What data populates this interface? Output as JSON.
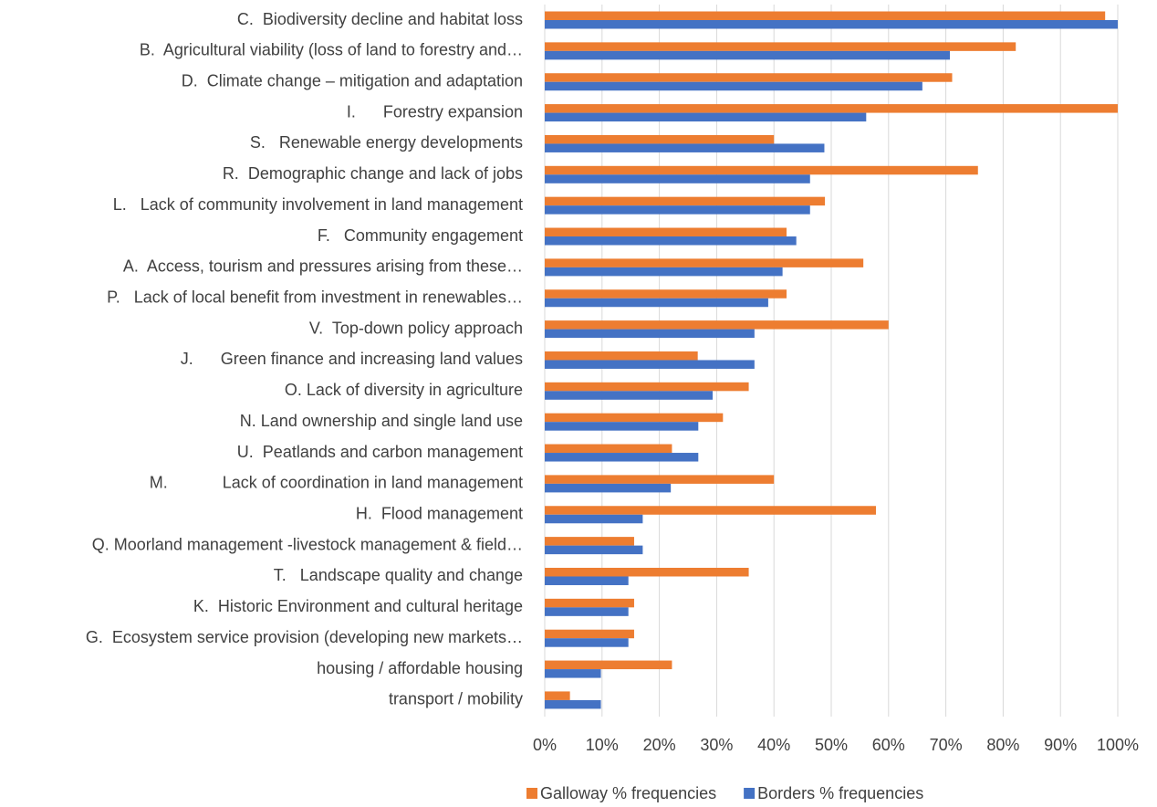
{
  "chart_data": {
    "type": "hbar",
    "categories": [
      "C.  Biodiversity decline and habitat loss",
      "B.  Agricultural viability (loss of land to forestry and…",
      "D.  Climate change – mitigation and adaptation",
      "I.      Forestry expansion",
      "S.   Renewable energy developments",
      "R.  Demographic change and lack of jobs",
      "L.   Lack of community involvement in land management",
      "F.   Community engagement",
      "A.  Access, tourism and pressures arising from these…",
      "P.   Lack of local benefit from investment in renewables…",
      "V.  Top-down policy approach",
      "J.      Green finance and increasing land values",
      "O. Lack of diversity in agriculture",
      "N. Land ownership and single land use",
      "U.  Peatlands and carbon management",
      "M.            Lack of coordination in land management",
      "H.  Flood management",
      "Q. Moorland management -livestock management & field…",
      "T.   Landscape quality and change",
      "K.  Historic Environment and cultural heritage",
      "G.  Ecosystem service provision (developing new markets…",
      "housing / affordable housing",
      "transport / mobility"
    ],
    "series": [
      {
        "name": "Galloway % frequencies",
        "color": "#ed7d31",
        "values": [
          97.8,
          82.2,
          71.1,
          100,
          40,
          75.6,
          48.9,
          42.2,
          55.6,
          42.2,
          60,
          26.7,
          35.6,
          31.1,
          22.2,
          40,
          57.8,
          15.6,
          35.6,
          15.6,
          15.6,
          22.2,
          4.4
        ]
      },
      {
        "name": "Borders % frequencies",
        "color": "#4472c4",
        "values": [
          100,
          70.7,
          65.9,
          56.1,
          48.8,
          46.3,
          46.3,
          43.9,
          41.5,
          39.0,
          36.6,
          36.6,
          29.3,
          26.8,
          26.8,
          22.0,
          17.1,
          17.1,
          14.6,
          14.6,
          14.6,
          9.8,
          9.8
        ]
      }
    ],
    "xlim": [
      0,
      100
    ],
    "xticks": [
      {
        "value": 0,
        "label": "0%"
      },
      {
        "value": 10,
        "label": "10%"
      },
      {
        "value": 20,
        "label": "20%"
      },
      {
        "value": 30,
        "label": "30%"
      },
      {
        "value": 40,
        "label": "40%"
      },
      {
        "value": 50,
        "label": "50%"
      },
      {
        "value": 60,
        "label": "60%"
      },
      {
        "value": 70,
        "label": "70%"
      },
      {
        "value": 80,
        "label": "80%"
      },
      {
        "value": 90,
        "label": "90%"
      },
      {
        "value": 100,
        "label": "100%"
      }
    ],
    "grid": true,
    "legend": "bottom"
  }
}
